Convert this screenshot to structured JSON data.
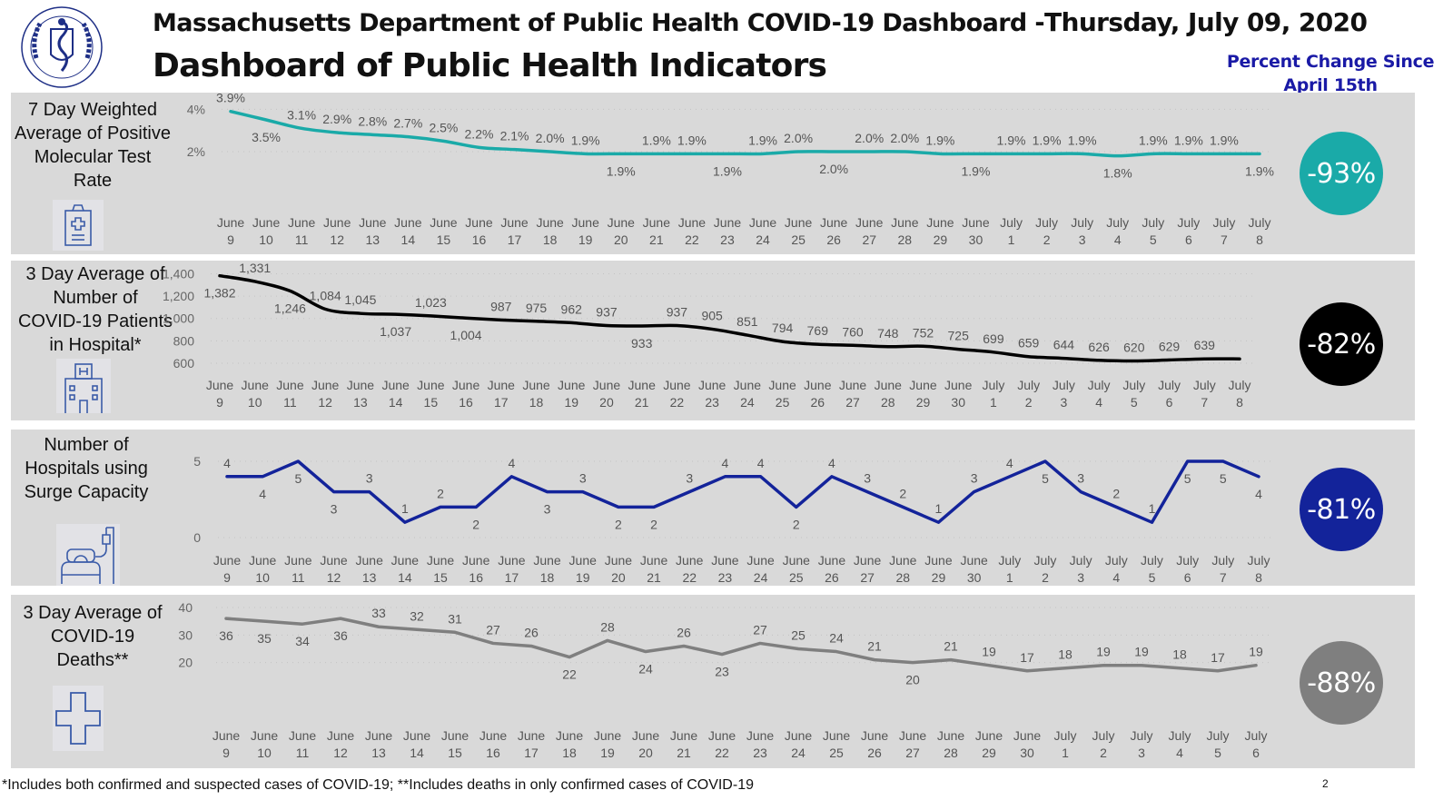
{
  "header": {
    "title_line1": "Massachusetts Department of Public Health COVID-19 Dashboard -",
    "title_line2": "Dashboard of Public Health Indicators",
    "date": "Thursday, July 09, 2020",
    "percent_change_heading_line1": "Percent Change Since",
    "percent_change_heading_line2": "April 15th",
    "logo": "massachusetts-dph-seal-icon"
  },
  "footnote": "*Includes both confirmed and suspected cases of COVID-19; **Includes deaths in only confirmed cases of COVID-19",
  "page_number": "2",
  "colors": {
    "panel_bg": "#d9d9d9",
    "positivity": "#1aaaa8",
    "hospital": "#000000",
    "surge": "#13239a",
    "deaths": "#7f7f7f",
    "heading_blue": "#1a1aa6",
    "icon_blue": "#3a5ba8"
  },
  "panels": [
    {
      "label_lines": [
        "7 Day Weighted",
        "Average of Positive",
        "Molecular Test",
        "Rate"
      ],
      "icon": "clipboard-medical-icon",
      "badge": "-93%"
    },
    {
      "label_lines": [
        "3 Day Average of",
        "Number of",
        "COVID-19 Patients",
        "in Hospital*"
      ],
      "icon": "hospital-building-icon",
      "badge": "-82%"
    },
    {
      "label_lines": [
        "Number of",
        "Hospitals using",
        "Surge Capacity"
      ],
      "icon": "hospital-bed-iv-icon",
      "badge": "-81%"
    },
    {
      "label_lines": [
        "3 Day Average of",
        "COVID-19",
        "Deaths**"
      ],
      "icon": "medical-cross-icon",
      "badge": "-88%"
    }
  ],
  "chart_data": [
    {
      "type": "line",
      "title": "7 Day Weighted Average of Positive Molecular Test Rate",
      "x": [
        "June 9",
        "June 10",
        "June 11",
        "June 12",
        "June 13",
        "June 14",
        "June 15",
        "June 16",
        "June 17",
        "June 18",
        "June 19",
        "June 20",
        "June 21",
        "June 22",
        "June 23",
        "June 24",
        "June 25",
        "June 26",
        "June 27",
        "June 28",
        "June 29",
        "June 30",
        "July 1",
        "July 2",
        "July 3",
        "July 4",
        "July 5",
        "July 6",
        "July 7",
        "July 8"
      ],
      "values": [
        3.9,
        3.5,
        3.1,
        2.9,
        2.8,
        2.7,
        2.5,
        2.2,
        2.1,
        2.0,
        1.9,
        1.9,
        1.9,
        1.9,
        1.9,
        1.9,
        2.0,
        2.0,
        2.0,
        2.0,
        1.9,
        1.9,
        1.9,
        1.9,
        1.9,
        1.8,
        1.9,
        1.9,
        1.9,
        1.9
      ],
      "labels": [
        "3.9%",
        "3.5%",
        "3.1%",
        "2.9%",
        "2.8%",
        "2.7%",
        "2.5%",
        "2.2%",
        "2.1%",
        "2.0%",
        "1.9%",
        "1.9%",
        "1.9%",
        "1.9%",
        "1.9%",
        "1.9%",
        "2.0%",
        "2.0%",
        "2.0%",
        "2.0%",
        "1.9%",
        "1.9%",
        "1.9%",
        "1.9%",
        "1.9%",
        "1.8%",
        "1.9%",
        "1.9%",
        "1.9%",
        "1.9%"
      ],
      "label_below": [
        false,
        true,
        false,
        false,
        false,
        false,
        false,
        false,
        false,
        false,
        false,
        true,
        false,
        false,
        true,
        false,
        false,
        true,
        false,
        false,
        false,
        true,
        false,
        false,
        false,
        true,
        false,
        false,
        false,
        true
      ],
      "yticks": [
        "4%",
        "2%"
      ],
      "ytick_values": [
        4,
        2
      ],
      "ylim": [
        0.5,
        4.1
      ],
      "grid": true
    },
    {
      "type": "line",
      "title": "3 Day Average of Number of COVID-19 Patients in Hospital*",
      "x": [
        "June 9",
        "June 10",
        "June 11",
        "June 12",
        "June 13",
        "June 14",
        "June 15",
        "June 16",
        "June 17",
        "June 18",
        "June 19",
        "June 20",
        "June 21",
        "June 22",
        "June 23",
        "June 24",
        "June 25",
        "June 26",
        "June 27",
        "June 28",
        "June 29",
        "June 30",
        "July 1",
        "July 2",
        "July 3",
        "July 4",
        "July 5",
        "July 6",
        "July 7",
        "July 8"
      ],
      "values": [
        1382,
        1331,
        1246,
        1084,
        1045,
        1037,
        1023,
        1004,
        987,
        975,
        962,
        937,
        933,
        937,
        905,
        851,
        794,
        769,
        760,
        748,
        752,
        725,
        699,
        659,
        644,
        626,
        620,
        629,
        639,
        639
      ],
      "labels": [
        "1,382",
        "1,331",
        "1,246",
        "1,084",
        "1,045",
        "1,037",
        "1,023",
        "1,004",
        "987",
        "975",
        "962",
        "937",
        "933",
        "937",
        "905",
        "851",
        "794",
        "769",
        "760",
        "748",
        "752",
        "725",
        "699",
        "659",
        "644",
        "626",
        "620",
        "629",
        "639",
        ""
      ],
      "label_below": [
        true,
        false,
        true,
        false,
        false,
        true,
        false,
        true,
        false,
        false,
        false,
        false,
        true,
        false,
        false,
        false,
        false,
        false,
        false,
        false,
        false,
        false,
        false,
        false,
        false,
        false,
        false,
        false,
        false,
        false
      ],
      "yticks": [
        "1,400",
        "1,200",
        "1,000",
        "800",
        "600"
      ],
      "ytick_values": [
        1400,
        1200,
        1000,
        800,
        600
      ],
      "ylim": [
        600,
        1420
      ],
      "grid": true
    },
    {
      "type": "line",
      "title": "Number of Hospitals using Surge Capacity",
      "x": [
        "June 9",
        "June 10",
        "June 11",
        "June 12",
        "June 13",
        "June 14",
        "June 15",
        "June 16",
        "June 17",
        "June 18",
        "June 19",
        "June 20",
        "June 21",
        "June 22",
        "June 23",
        "June 24",
        "June 25",
        "June 26",
        "June 27",
        "June 28",
        "June 29",
        "June 30",
        "July 1",
        "July 2",
        "July 3",
        "July 4",
        "July 5",
        "July 6",
        "July 7",
        "July 8"
      ],
      "values": [
        4,
        4,
        5,
        3,
        3,
        1,
        2,
        2,
        4,
        3,
        3,
        2,
        2,
        3,
        4,
        4,
        2,
        4,
        3,
        2,
        1,
        3,
        4,
        5,
        3,
        2,
        1,
        5,
        5,
        4
      ],
      "labels": [
        "4",
        "4",
        "5",
        "3",
        "3",
        "1",
        "2",
        "2",
        "4",
        "3",
        "3",
        "2",
        "2",
        "3",
        "4",
        "4",
        "2",
        "4",
        "3",
        "2",
        "1",
        "3",
        "4",
        "5",
        "3",
        "2",
        "1",
        "5",
        "5",
        "4"
      ],
      "label_below": [
        false,
        true,
        true,
        true,
        false,
        false,
        false,
        true,
        false,
        true,
        false,
        true,
        true,
        false,
        false,
        false,
        true,
        false,
        false,
        false,
        false,
        false,
        false,
        true,
        false,
        false,
        false,
        true,
        true,
        true
      ],
      "yticks": [
        "5",
        "0"
      ],
      "ytick_values": [
        5,
        0
      ],
      "ylim": [
        0,
        5
      ],
      "grid": true
    },
    {
      "type": "line",
      "title": "3 Day Average of COVID-19 Deaths**",
      "x": [
        "June 9",
        "June 10",
        "June 11",
        "June 12",
        "June 13",
        "June 14",
        "June 15",
        "June 16",
        "June 17",
        "June 18",
        "June 19",
        "June 20",
        "June 21",
        "June 22",
        "June 23",
        "June 24",
        "June 25",
        "June 26",
        "June 27",
        "June 28",
        "June 29",
        "June 30",
        "July 1",
        "July 2",
        "July 3",
        "July 4",
        "July 5",
        "July 6"
      ],
      "values": [
        36,
        35,
        34,
        36,
        33,
        32,
        31,
        27,
        26,
        22,
        28,
        24,
        26,
        23,
        27,
        25,
        24,
        21,
        20,
        21,
        19,
        17,
        18,
        19,
        19,
        18,
        17,
        19
      ],
      "labels": [
        "36",
        "35",
        "34",
        "36",
        "33",
        "32",
        "31",
        "27",
        "26",
        "22",
        "28",
        "24",
        "26",
        "23",
        "27",
        "25",
        "24",
        "21",
        "20",
        "21",
        "19",
        "17",
        "18",
        "19",
        "19",
        "18",
        "17",
        "19"
      ],
      "label_below": [
        true,
        true,
        true,
        true,
        false,
        false,
        false,
        false,
        false,
        true,
        false,
        true,
        false,
        true,
        false,
        false,
        false,
        false,
        true,
        false,
        false,
        false,
        false,
        false,
        false,
        false,
        false,
        false
      ],
      "yticks": [
        "40",
        "30",
        "20"
      ],
      "ytick_values": [
        40,
        30,
        20
      ],
      "ylim": [
        10,
        40
      ],
      "grid": true
    }
  ]
}
